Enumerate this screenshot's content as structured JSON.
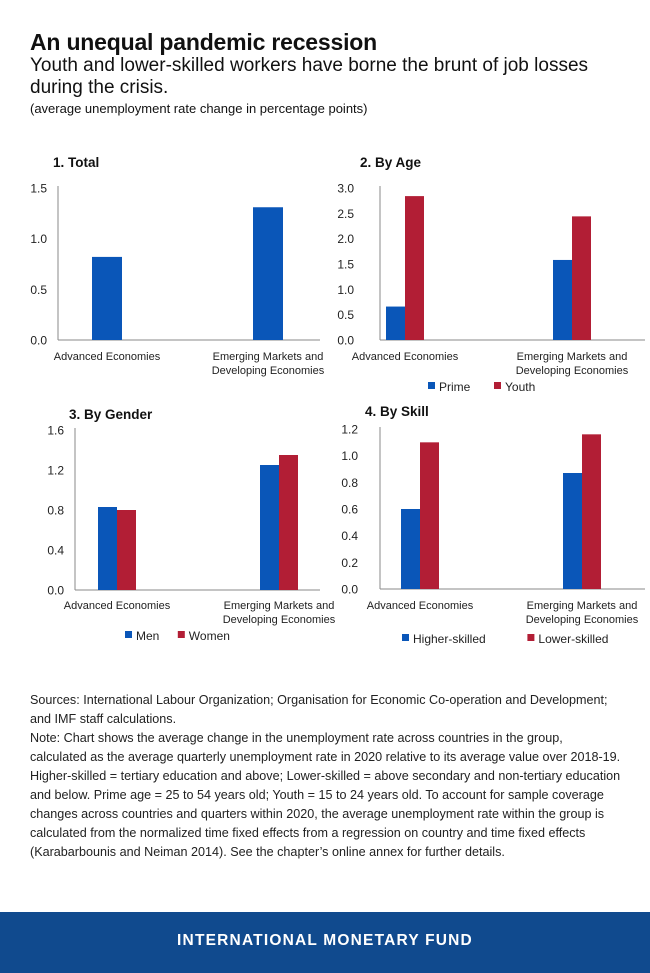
{
  "header": {
    "title": "An unequal pandemic recession",
    "subtitle": "Youth and lower-skilled workers have borne the brunt of job losses during the crisis.",
    "unit": "(average unemployment rate change in percentage points)"
  },
  "chart_data": [
    {
      "type": "bar",
      "title": "1. Total",
      "categories": [
        [
          "Advanced Economies"
        ],
        [
          "Emerging Markets and",
          "Developing Economies"
        ]
      ],
      "series": [
        {
          "name": "Total",
          "color": "#0a56b8",
          "values": [
            0.82,
            1.31
          ]
        }
      ],
      "ylim": [
        0,
        1.5
      ],
      "ticks": [
        0,
        0.5,
        1,
        1.5
      ],
      "tick_labels": [
        "0.0",
        "0.5",
        "1.0",
        "1.5"
      ],
      "show_legend": false,
      "grid": false
    },
    {
      "type": "bar",
      "title": "2. By Age",
      "categories": [
        [
          "Advanced Economies"
        ],
        [
          "Emerging Markets and",
          "Developing Economies"
        ]
      ],
      "series": [
        {
          "name": "Prime",
          "color": "#0a56b8",
          "values": [
            0.66,
            1.58
          ]
        },
        {
          "name": "Youth",
          "color": "#b21e35",
          "values": [
            2.84,
            2.44
          ]
        }
      ],
      "ylim": [
        0,
        3
      ],
      "ticks": [
        0,
        0.5,
        1,
        1.5,
        2,
        2.5,
        3
      ],
      "tick_labels": [
        "0.0",
        "0.5",
        "1.0",
        "1.5",
        "2.0",
        "2.5",
        "3.0"
      ],
      "show_legend": true,
      "grid": false
    },
    {
      "type": "bar",
      "title": "3. By Gender",
      "categories": [
        [
          "Advanced Economies"
        ],
        [
          "Emerging Markets and",
          "Developing Economies"
        ]
      ],
      "series": [
        {
          "name": "Men",
          "color": "#0a56b8",
          "values": [
            0.83,
            1.25
          ]
        },
        {
          "name": "Women",
          "color": "#b21e35",
          "values": [
            0.8,
            1.35
          ]
        }
      ],
      "ylim": [
        0,
        1.6
      ],
      "ticks": [
        0,
        0.4,
        0.8,
        1.2,
        1.6
      ],
      "tick_labels": [
        "0.0",
        "0.4",
        "0.8",
        "1.2",
        "1.6"
      ],
      "show_legend": true,
      "grid": false
    },
    {
      "type": "bar",
      "title": "4. By Skill",
      "categories": [
        [
          "Advanced Economies"
        ],
        [
          "Emerging Markets and",
          "Developing Economies"
        ]
      ],
      "series": [
        {
          "name": "Higher-skilled",
          "color": "#0a56b8",
          "values": [
            0.6,
            0.87
          ]
        },
        {
          "name": "Lower-skilled",
          "color": "#b21e35",
          "values": [
            1.1,
            1.16
          ]
        }
      ],
      "ylim": [
        0,
        1.2
      ],
      "ticks": [
        0,
        0.2,
        0.4,
        0.6,
        0.8,
        1.0,
        1.2
      ],
      "tick_labels": [
        "0.0",
        "0.2",
        "0.4",
        "0.6",
        "0.8",
        "1.0",
        "1.2"
      ],
      "show_legend": true,
      "grid": false
    }
  ],
  "notes": {
    "sources": "Sources: International Labour Organization; Organisation for Economic Co-operation and Development; and IMF staff calculations.",
    "note": "Note: Chart shows the average change in the unemployment rate across countries in the group, calculated as the average quarterly unemployment rate in 2020 relative to its average value over 2018-19. Higher-skilled = tertiary education and above; Lower-skilled = above secondary and non-tertiary education and below. Prime age = 25 to 54 years old; Youth = 15 to 24 years old. To account for sample coverage changes across countries and quarters within 2020, the average unemployment rate within the group is calculated from the normalized time fixed effects from a regression on country and time fixed effects (Karabarbounis and Neiman 2014). See the chapter’s online annex for further details."
  },
  "footer": {
    "label": "INTERNATIONAL MONETARY FUND",
    "color": "#104a8e"
  }
}
